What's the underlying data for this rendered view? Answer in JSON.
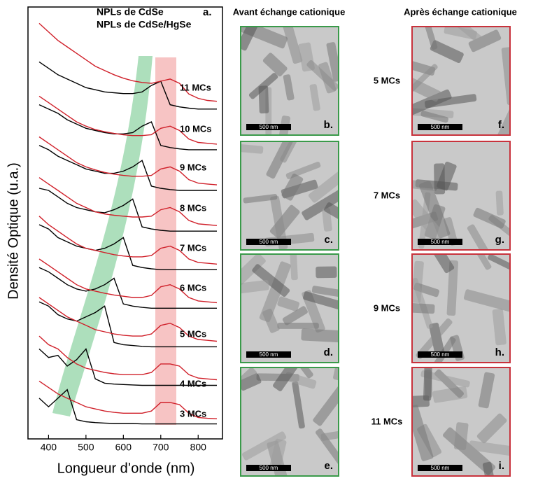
{
  "chart_data": {
    "type": "line",
    "panel": "a.",
    "xlabel": "Longueur d’onde (nm)",
    "ylabel": "Densité Optique (u.a.)",
    "xlim": [
      345,
      865
    ],
    "ylim": [
      0,
      10
    ],
    "xticks": [
      400,
      500,
      600,
      700,
      800
    ],
    "legend": [
      {
        "name": "NPLs de CdSe",
        "color": "#000000"
      },
      {
        "name": "NPLs de CdSe/HgSe",
        "color": "#d0202a"
      }
    ],
    "x": [
      375,
      400,
      425,
      450,
      475,
      500,
      525,
      550,
      575,
      600,
      625,
      650,
      675,
      700,
      725,
      750,
      775,
      800,
      825,
      850
    ],
    "samples": [
      {
        "label": "3 MCs",
        "values": [
          [
            0.95,
            0.75,
            0.95,
            1.15,
            0.45,
            0.4,
            0.38,
            0.37,
            0.36,
            0.36,
            0.36,
            0.35,
            0.35,
            0.35,
            0.35,
            0.35,
            0.35,
            0.35,
            0.35,
            0.35
          ],
          [
            1.35,
            1.2,
            1.05,
            0.95,
            0.85,
            0.75,
            0.7,
            0.65,
            0.62,
            0.6,
            0.6,
            0.6,
            0.65,
            0.85,
            0.85,
            0.8,
            0.6,
            0.5,
            0.48,
            0.47
          ]
        ]
      },
      {
        "label": "4 MCs",
        "values": [
          [
            2.1,
            1.9,
            1.95,
            1.7,
            1.85,
            2.1,
            1.4,
            1.3,
            1.28,
            1.27,
            1.26,
            1.25,
            1.25,
            1.25,
            1.25,
            1.25,
            1.25,
            1.25,
            1.25,
            1.25
          ],
          [
            2.4,
            2.2,
            2.1,
            1.9,
            1.75,
            1.65,
            1.6,
            1.55,
            1.52,
            1.5,
            1.5,
            1.5,
            1.55,
            1.75,
            1.75,
            1.7,
            1.5,
            1.42,
            1.4,
            1.38
          ]
        ]
      },
      {
        "label": "5 MCs",
        "values": [
          [
            3.2,
            3.1,
            2.9,
            2.8,
            2.75,
            2.85,
            2.95,
            3.1,
            2.25,
            2.2,
            2.18,
            2.16,
            2.15,
            2.15,
            2.15,
            2.15,
            2.15,
            2.15,
            2.15,
            2.15
          ],
          [
            3.3,
            3.15,
            3.0,
            2.85,
            2.75,
            2.65,
            2.55,
            2.5,
            2.45,
            2.42,
            2.4,
            2.4,
            2.45,
            2.65,
            2.7,
            2.6,
            2.4,
            2.32,
            2.3,
            2.28
          ]
        ]
      },
      {
        "label": "6 MCs",
        "values": [
          [
            4.0,
            3.9,
            3.75,
            3.6,
            3.5,
            3.45,
            3.5,
            3.6,
            3.75,
            3.15,
            3.1,
            3.07,
            3.05,
            3.05,
            3.05,
            3.05,
            3.05,
            3.05,
            3.05,
            3.05
          ],
          [
            4.2,
            4.05,
            3.9,
            3.75,
            3.6,
            3.5,
            3.45,
            3.4,
            3.36,
            3.33,
            3.3,
            3.3,
            3.35,
            3.55,
            3.6,
            3.5,
            3.3,
            3.22,
            3.2,
            3.18
          ]
        ]
      },
      {
        "label": "7 MCs",
        "values": [
          [
            5.0,
            4.9,
            4.7,
            4.6,
            4.5,
            4.45,
            4.4,
            4.45,
            4.55,
            4.7,
            4.05,
            4.0,
            3.97,
            3.95,
            3.95,
            3.95,
            3.95,
            3.95,
            3.95,
            3.95
          ],
          [
            5.2,
            5.0,
            4.85,
            4.7,
            4.55,
            4.45,
            4.4,
            4.35,
            4.3,
            4.27,
            4.25,
            4.25,
            4.28,
            4.45,
            4.5,
            4.4,
            4.2,
            4.12,
            4.1,
            4.08
          ]
        ]
      },
      {
        "label": "8 MCs",
        "values": [
          [
            5.85,
            5.8,
            5.65,
            5.5,
            5.4,
            5.35,
            5.3,
            5.28,
            5.35,
            5.45,
            5.6,
            4.95,
            4.9,
            4.87,
            4.85,
            4.85,
            4.85,
            4.85,
            4.85,
            4.85
          ],
          [
            6.1,
            5.95,
            5.8,
            5.65,
            5.5,
            5.4,
            5.3,
            5.25,
            5.22,
            5.2,
            5.18,
            5.18,
            5.2,
            5.35,
            5.4,
            5.3,
            5.1,
            5.02,
            5.0,
            4.98
          ]
        ]
      },
      {
        "label": "9 MCs",
        "values": [
          [
            6.85,
            6.75,
            6.6,
            6.5,
            6.4,
            6.3,
            6.25,
            6.2,
            6.2,
            6.25,
            6.35,
            6.5,
            5.9,
            5.85,
            5.82,
            5.8,
            5.8,
            5.8,
            5.8,
            5.8
          ],
          [
            7.05,
            6.9,
            6.75,
            6.6,
            6.45,
            6.35,
            6.28,
            6.22,
            6.18,
            6.15,
            6.13,
            6.13,
            6.15,
            6.3,
            6.35,
            6.25,
            6.05,
            5.97,
            5.95,
            5.93
          ]
        ]
      },
      {
        "label": "10 MCs",
        "values": [
          [
            7.8,
            7.7,
            7.6,
            7.45,
            7.35,
            7.25,
            7.2,
            7.15,
            7.12,
            7.12,
            7.15,
            7.3,
            7.4,
            6.85,
            6.8,
            6.77,
            6.75,
            6.75,
            6.75,
            6.75
          ],
          [
            8.0,
            7.85,
            7.7,
            7.55,
            7.4,
            7.3,
            7.22,
            7.17,
            7.13,
            7.1,
            7.08,
            7.08,
            7.1,
            7.25,
            7.3,
            7.2,
            7.0,
            6.92,
            6.9,
            6.88
          ]
        ]
      },
      {
        "label": "11 MCs",
        "values": [
          [
            8.8,
            8.65,
            8.5,
            8.4,
            8.3,
            8.2,
            8.15,
            8.1,
            8.08,
            8.06,
            8.06,
            8.1,
            8.25,
            8.35,
            7.8,
            7.75,
            7.72,
            7.7,
            7.7,
            7.7
          ],
          [
            9.7,
            9.5,
            9.3,
            9.15,
            9.0,
            8.85,
            8.7,
            8.6,
            8.5,
            8.42,
            8.36,
            8.32,
            8.3,
            8.35,
            8.4,
            8.3,
            8.05,
            7.95,
            7.9,
            7.88
          ]
        ]
      }
    ]
  },
  "tem": {
    "headers": [
      "Avant échange cationique",
      "Après échange cationique"
    ],
    "rows": [
      {
        "label": "5 MCs",
        "before": {
          "letter": "b.",
          "scale": "500 nm"
        },
        "after": {
          "letter": "f.",
          "scale": "500 nm"
        }
      },
      {
        "label": "7 MCs",
        "before": {
          "letter": "c.",
          "scale": "500 nm"
        },
        "after": {
          "letter": "g.",
          "scale": "500 nm"
        }
      },
      {
        "label": "9 MCs",
        "before": {
          "letter": "d.",
          "scale": "500 nm"
        },
        "after": {
          "letter": "h.",
          "scale": "500 nm"
        }
      },
      {
        "label": "11 MCs",
        "before": {
          "letter": "e.",
          "scale": "500 nm"
        },
        "after": {
          "letter": "i.",
          "scale": "500 nm"
        }
      }
    ]
  }
}
